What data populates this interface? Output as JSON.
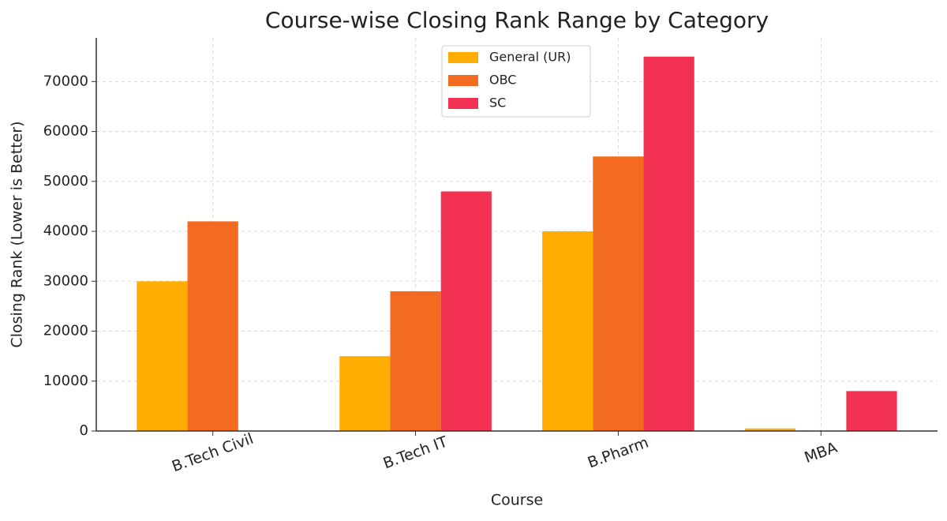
{
  "chart_data": {
    "type": "bar",
    "title": "Course-wise Closing Rank Range by Category",
    "x_label": "Course",
    "y_label": "Closing Rank (Lower is Better)",
    "categories": [
      "B.Tech Civil",
      "B.Tech IT",
      "B.Pharm",
      "MBA"
    ],
    "series": [
      {
        "name": "General (UR)",
        "color": "#ffad00",
        "values": [
          30000,
          15000,
          40000,
          500
        ]
      },
      {
        "name": "OBC",
        "color": "#f26b21",
        "values": [
          42000,
          28000,
          55000,
          null
        ]
      },
      {
        "name": "SC",
        "color": "#f23153",
        "values": [
          null,
          48000,
          75000,
          8000
        ]
      }
    ],
    "ylim": [
      0,
      78750
    ],
    "yticks": [
      0,
      10000,
      20000,
      30000,
      40000,
      50000,
      60000,
      70000
    ],
    "grid": true,
    "legend": "upper center"
  }
}
